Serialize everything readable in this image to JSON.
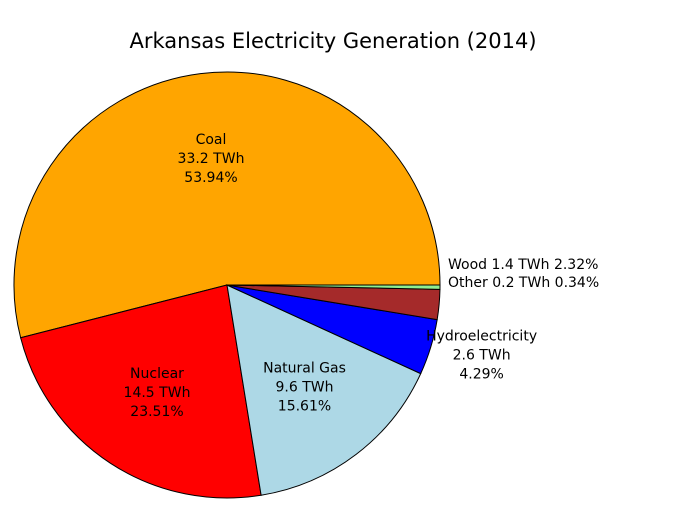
{
  "chart_data": {
    "type": "pie",
    "title": "Arkansas Electricity Generation (2014)",
    "unit": "TWh",
    "slices": [
      {
        "name": "Coal",
        "value": 33.2,
        "value_label": "33.2 TWh",
        "percent_label": "53.94%",
        "color": "#ffa500",
        "label_position": "inside"
      },
      {
        "name": "Nuclear",
        "value": 14.5,
        "value_label": "14.5 TWh",
        "percent_label": "23.51%",
        "color": "#ff0000",
        "label_position": "inside"
      },
      {
        "name": "Natural Gas",
        "value": 9.6,
        "value_label": "9.6 TWh",
        "percent_label": "15.61%",
        "color": "#add8e6",
        "label_position": "inside"
      },
      {
        "name": "Hydroelectricity",
        "value": 2.6,
        "value_label": "2.6 TWh",
        "percent_label": "4.29%",
        "color": "#0000ff",
        "label_position": "outside"
      },
      {
        "name": "Wood",
        "value": 1.4,
        "value_label": "1.4 TWh",
        "percent_label": "2.32%",
        "color": "#a52a2a",
        "label_position": "outside-inline"
      },
      {
        "name": "Other",
        "value": 0.2,
        "value_label": "0.2 TWh",
        "percent_label": "0.34%",
        "color": "#90ee90",
        "label_position": "outside-inline"
      }
    ],
    "start_angle_deg": 0,
    "direction": "counterclockwise",
    "legend": "none"
  }
}
